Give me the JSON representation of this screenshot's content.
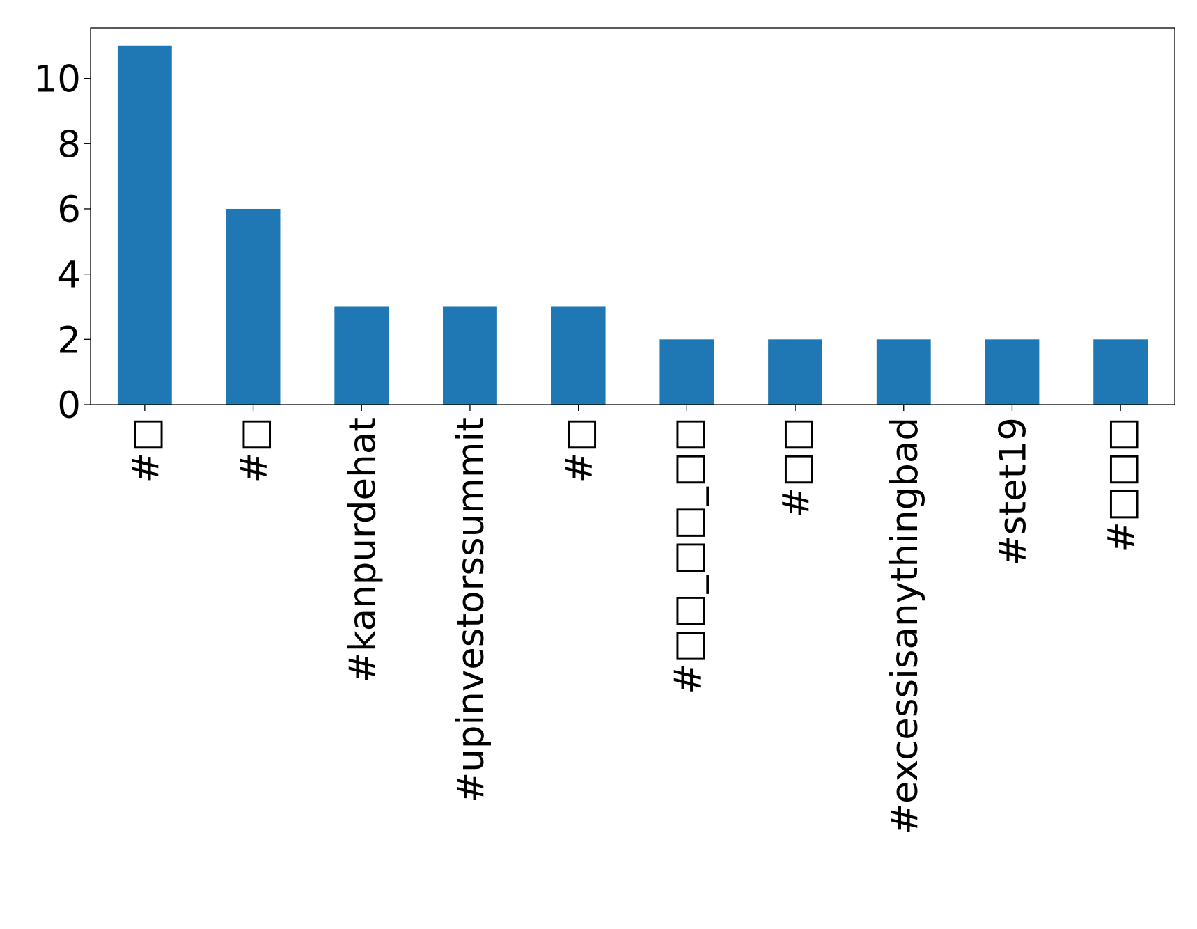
{
  "chart_data": {
    "type": "bar",
    "categories": [
      "#□",
      "#□",
      "#kanpurdehat",
      "#upinvestorssummit",
      "#□",
      "#□□_□□_□□",
      "#□□",
      "#excessisanythingbad",
      "#stet19",
      "#□□□"
    ],
    "values": [
      11,
      6,
      3,
      3,
      3,
      2,
      2,
      2,
      2,
      2
    ],
    "color": "#1f77b4",
    "ylim": [
      0,
      11.55
    ],
    "yticks": [
      0,
      2,
      4,
      6,
      8,
      10
    ],
    "grid": false
  }
}
